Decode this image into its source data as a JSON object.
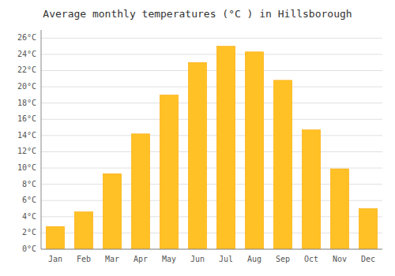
{
  "chart_data": {
    "type": "bar",
    "title": "Average monthly temperatures (°C ) in Hillsborough",
    "categories": [
      "Jan",
      "Feb",
      "Mar",
      "Apr",
      "May",
      "Jun",
      "Jul",
      "Aug",
      "Sep",
      "Oct",
      "Nov",
      "Dec"
    ],
    "values": [
      2.8,
      4.6,
      9.3,
      14.2,
      19.0,
      23.0,
      25.0,
      24.3,
      20.8,
      14.7,
      9.9,
      5.0
    ],
    "color": "#FFC125",
    "ylim": [
      0,
      27
    ],
    "yticks": [
      {
        "value": 0,
        "label": "0°C"
      },
      {
        "value": 2,
        "label": "2°C"
      },
      {
        "value": 4,
        "label": "4°C"
      },
      {
        "value": 6,
        "label": "6°C"
      },
      {
        "value": 8,
        "label": "8°C"
      },
      {
        "value": 10,
        "label": "10°C"
      },
      {
        "value": 12,
        "label": "12°C"
      },
      {
        "value": 14,
        "label": "14°C"
      },
      {
        "value": 16,
        "label": "16°C"
      },
      {
        "value": 18,
        "label": "18°C"
      },
      {
        "value": 20,
        "label": "20°C"
      },
      {
        "value": 22,
        "label": "22°C"
      },
      {
        "value": 24,
        "label": "24°C"
      },
      {
        "value": 26,
        "label": "26°C"
      }
    ],
    "grid": true
  }
}
